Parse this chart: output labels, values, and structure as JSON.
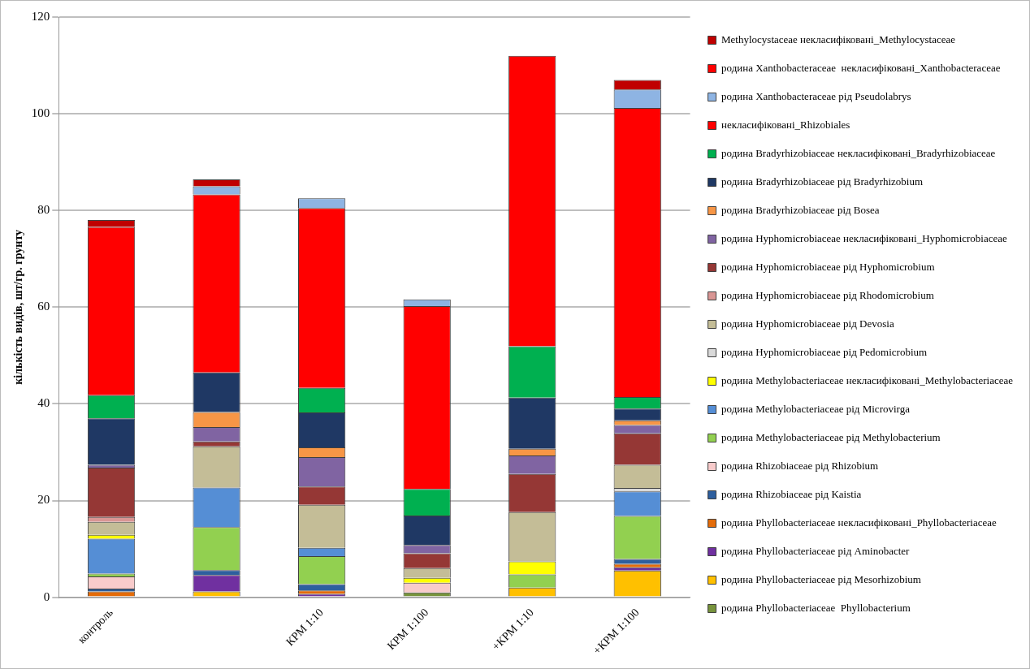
{
  "chart_data": {
    "type": "bar",
    "stacked": true,
    "ylabel": "кількість видів, шт/гр. грунту",
    "categories": [
      "контроль",
      null,
      "КРМ 1:10",
      "КРМ 1:100",
      "+КРМ 1:10",
      "+КРМ 1:100"
    ],
    "ylim": [
      0,
      120
    ],
    "yticks": [
      0,
      20,
      40,
      60,
      80,
      100,
      120
    ],
    "grid": "y",
    "legend": "right",
    "series": [
      {
        "name": "родина Phyllobacteriaceae  Phyllobacterium",
        "color": "#77933c",
        "values": [
          0,
          0,
          0,
          1,
          0,
          0
        ]
      },
      {
        "name": "родина Phyllobacteriaceae рід Mesorhizobium",
        "color": "#ffc000",
        "values": [
          0,
          1.2,
          0,
          0,
          2,
          5.5
        ]
      },
      {
        "name": "родина Phyllobacteriaceae рід Aminobacter",
        "color": "#7030a0",
        "values": [
          0,
          3.4,
          0.7,
          0,
          0,
          0.7
        ]
      },
      {
        "name": "родина Phyllobacteriaceae некласифіковані_Phyllobacteriaceae",
        "color": "#e46c0a",
        "values": [
          1.2,
          0,
          0.7,
          0,
          0,
          0.7
        ]
      },
      {
        "name": "родина Rhizobiaceae рід Kaistia",
        "color": "#2e5f9e",
        "values": [
          0.6,
          1,
          1.3,
          0,
          0,
          1
        ]
      },
      {
        "name": "родина Rhizobiaceae рід Rhizobium",
        "color": "#f8cbcb",
        "values": [
          2.5,
          0,
          0,
          2,
          0,
          0
        ]
      },
      {
        "name": "родина Methylobacteriaceae рід Methylobacterium",
        "color": "#92d050",
        "values": [
          0.6,
          8.9,
          5.8,
          0,
          2.7,
          8.9
        ]
      },
      {
        "name": "родина Methylobacteriaceae рід Microvirga",
        "color": "#558ed5",
        "values": [
          7.2,
          8.2,
          1.7,
          0,
          0,
          5.1
        ]
      },
      {
        "name": "родина Methylobacteriaceae некласифіковані_Methylobacteriaceae",
        "color": "#ffff00",
        "values": [
          0.8,
          0,
          0,
          1,
          2.7,
          0
        ]
      },
      {
        "name": "родина Hyphomicrobiaceae рід Pedomicrobium",
        "color": "#d9d9d9",
        "values": [
          0,
          0,
          0,
          0,
          0,
          0.7
        ]
      },
      {
        "name": "родина Hyphomicrobiaceae рід Devosia",
        "color": "#c4bd97",
        "values": [
          2.7,
          8.5,
          8.9,
          2,
          10.2,
          4.8
        ]
      },
      {
        "name": "родина Hyphomicrobiaceae рід Rhodomicrobium",
        "color": "#d99694",
        "values": [
          1,
          0,
          0,
          0,
          0,
          0
        ]
      },
      {
        "name": "родина Hyphomicrobiaceae рід Hyphomicrobium",
        "color": "#953735",
        "values": [
          10.2,
          1,
          3.8,
          3.1,
          7.9,
          6.5
        ]
      },
      {
        "name": "родина Hyphomicrobiaceae некласифіковані_Hyphomicrobiaceae",
        "color": "#8064a2",
        "values": [
          0.6,
          3,
          6.1,
          1.7,
          3.8,
          1.7
        ]
      },
      {
        "name": "родина Bradyrhizobiaceae рід Bosea",
        "color": "#f79646",
        "values": [
          0,
          3.1,
          2,
          0,
          1.4,
          1
        ]
      },
      {
        "name": "родина Bradyrhizobiaceae рід Bradyrhizobium",
        "color": "#1f3864",
        "values": [
          9.6,
          8.2,
          7.2,
          6.1,
          10.6,
          2.4
        ]
      },
      {
        "name": "родина Bradyrhizobiaceae некласифіковані_Bradyrhizobiaceae",
        "color": "#00b050",
        "values": [
          4.8,
          0,
          5.1,
          5.5,
          10.6,
          2.4
        ]
      },
      {
        "name": "некласифіковані_Rhizobiales",
        "color": "#ff0000",
        "values": [
          34.8,
          36.8,
          37.2,
          37.8,
          60.1,
          59.8
        ]
      },
      {
        "name": "родина Xanthobacteraceae рід Pseudolabrys",
        "color": "#8eb4e3",
        "values": [
          0,
          1.7,
          2,
          1.4,
          0,
          3.8
        ]
      },
      {
        "name": "родина Xanthobacteraceae  некласифіковані_Xanthobacteraceae",
        "color": "#ff0000",
        "values": [
          0,
          0,
          0,
          0,
          0,
          0
        ]
      },
      {
        "name": "Methylocystaceae некласифіковані_Methylocystaceae",
        "color": "#c00000",
        "values": [
          1.4,
          1.4,
          0,
          0,
          0,
          2
        ]
      }
    ]
  }
}
